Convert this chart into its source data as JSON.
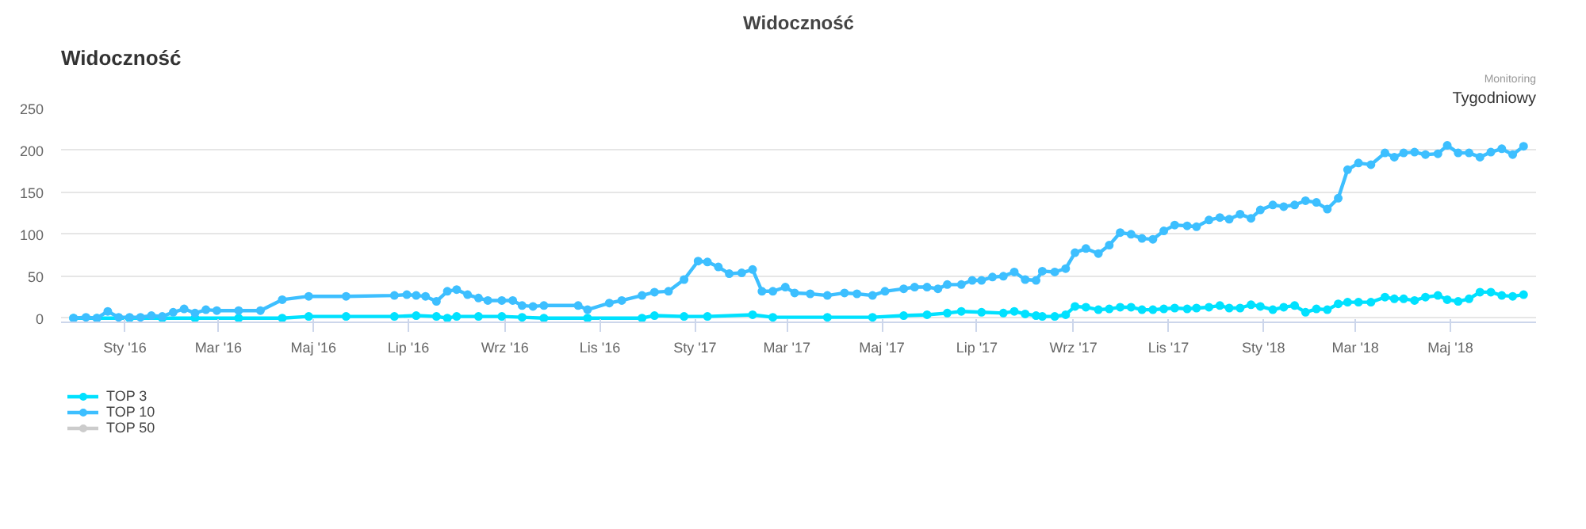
{
  "chart_data": {
    "type": "line",
    "title": "Widoczność",
    "annotations": [
      "Widoczność",
      "Monitoring",
      "Tygodniowy"
    ],
    "xlim": [
      "2015-11-21",
      "2018-06-25"
    ],
    "ylim": [
      -5,
      250
    ],
    "xticks": [
      {
        "value": "2016-01-01",
        "label": "Sty '16"
      },
      {
        "value": "2016-03-01",
        "label": "Mar '16"
      },
      {
        "value": "2016-05-01",
        "label": "Maj '16"
      },
      {
        "value": "2016-07-01",
        "label": "Lip '16"
      },
      {
        "value": "2016-09-01",
        "label": "Wrz '16"
      },
      {
        "value": "2016-11-01",
        "label": "Lis '16"
      },
      {
        "value": "2017-01-01",
        "label": "Sty '17"
      },
      {
        "value": "2017-03-01",
        "label": "Mar '17"
      },
      {
        "value": "2017-05-01",
        "label": "Maj '17"
      },
      {
        "value": "2017-07-01",
        "label": "Lip '17"
      },
      {
        "value": "2017-09-01",
        "label": "Wrz '17"
      },
      {
        "value": "2017-11-01",
        "label": "Lis '17"
      },
      {
        "value": "2018-01-01",
        "label": "Sty '18"
      },
      {
        "value": "2018-03-01",
        "label": "Mar '18"
      },
      {
        "value": "2018-05-01",
        "label": "Maj '18"
      }
    ],
    "yticks": [
      0,
      50,
      100,
      150,
      200,
      250
    ],
    "grid": "y",
    "legend": "bottom left",
    "marker": "circle",
    "line_style": "solid",
    "series": [
      {
        "name": "TOP 3",
        "color": "#00e1ff",
        "x": [
          "2015-11-29",
          "2015-12-14",
          "2016-01-04",
          "2016-01-25",
          "2016-02-15",
          "2016-03-14",
          "2016-04-11",
          "2016-04-28",
          "2016-05-22",
          "2016-06-22",
          "2016-07-06",
          "2016-07-19",
          "2016-07-26",
          "2016-08-01",
          "2016-08-15",
          "2016-08-30",
          "2016-09-12",
          "2016-09-26",
          "2016-10-24",
          "2016-11-28",
          "2016-12-06",
          "2016-12-25",
          "2017-01-09",
          "2017-02-07",
          "2017-02-20",
          "2017-03-27",
          "2017-04-25",
          "2017-05-15",
          "2017-05-30",
          "2017-06-12",
          "2017-06-21",
          "2017-07-04",
          "2017-07-18",
          "2017-07-25",
          "2017-08-01",
          "2017-08-08",
          "2017-08-12",
          "2017-08-20",
          "2017-08-27",
          "2017-09-02",
          "2017-09-09",
          "2017-09-17",
          "2017-09-24",
          "2017-10-01",
          "2017-10-08",
          "2017-10-15",
          "2017-10-22",
          "2017-10-29",
          "2017-11-05",
          "2017-11-13",
          "2017-11-19",
          "2017-11-27",
          "2017-12-04",
          "2017-12-10",
          "2017-12-17",
          "2017-12-24",
          "2017-12-30",
          "2018-01-07",
          "2018-01-14",
          "2018-01-21",
          "2018-01-28",
          "2018-02-04",
          "2018-02-11",
          "2018-02-18",
          "2018-02-24",
          "2018-03-03",
          "2018-03-11",
          "2018-03-20",
          "2018-03-26",
          "2018-04-01",
          "2018-04-08",
          "2018-04-15",
          "2018-04-23",
          "2018-04-29",
          "2018-05-06",
          "2018-05-13",
          "2018-05-20",
          "2018-05-27",
          "2018-06-03",
          "2018-06-10",
          "2018-06-17"
        ],
        "values": [
          0,
          0,
          0,
          0,
          0,
          0,
          0,
          2,
          2,
          2,
          3,
          2,
          0,
          2,
          2,
          2,
          1,
          0,
          0,
          0,
          3,
          2,
          2,
          4,
          1,
          1,
          1,
          3,
          4,
          6,
          8,
          7,
          6,
          8,
          5,
          3,
          2,
          2,
          4,
          14,
          13,
          10,
          11,
          13,
          13,
          10,
          10,
          11,
          12,
          11,
          12,
          13,
          15,
          12,
          12,
          16,
          14,
          10,
          13,
          15,
          7,
          11,
          10,
          17,
          19,
          19,
          19,
          25,
          23,
          23,
          21,
          25,
          27,
          22,
          20,
          23,
          31,
          31,
          27,
          26,
          28
        ]
      },
      {
        "name": "TOP 10",
        "color": "#3dbfff",
        "x": [
          "2015-11-29",
          "2015-12-07",
          "2015-12-14",
          "2015-12-21",
          "2015-12-28",
          "2016-01-04",
          "2016-01-11",
          "2016-01-18",
          "2016-01-25",
          "2016-02-01",
          "2016-02-08",
          "2016-02-15",
          "2016-02-22",
          "2016-02-29",
          "2016-03-14",
          "2016-03-28",
          "2016-04-11",
          "2016-04-28",
          "2016-05-22",
          "2016-06-22",
          "2016-06-30",
          "2016-07-06",
          "2016-07-12",
          "2016-07-19",
          "2016-07-26",
          "2016-08-01",
          "2016-08-08",
          "2016-08-15",
          "2016-08-21",
          "2016-08-30",
          "2016-09-06",
          "2016-09-12",
          "2016-09-19",
          "2016-09-26",
          "2016-10-18",
          "2016-10-24",
          "2016-11-07",
          "2016-11-15",
          "2016-11-28",
          "2016-12-06",
          "2016-12-15",
          "2016-12-25",
          "2017-01-03",
          "2017-01-09",
          "2017-01-16",
          "2017-01-23",
          "2017-01-31",
          "2017-02-07",
          "2017-02-13",
          "2017-02-20",
          "2017-02-28",
          "2017-03-06",
          "2017-03-16",
          "2017-03-27",
          "2017-04-07",
          "2017-04-15",
          "2017-04-25",
          "2017-05-03",
          "2017-05-15",
          "2017-05-22",
          "2017-05-30",
          "2017-06-06",
          "2017-06-12",
          "2017-06-21",
          "2017-06-28",
          "2017-07-04",
          "2017-07-11",
          "2017-07-18",
          "2017-07-25",
          "2017-08-01",
          "2017-08-08",
          "2017-08-12",
          "2017-08-20",
          "2017-08-27",
          "2017-09-02",
          "2017-09-09",
          "2017-09-17",
          "2017-09-24",
          "2017-10-01",
          "2017-10-08",
          "2017-10-15",
          "2017-10-22",
          "2017-10-29",
          "2017-11-05",
          "2017-11-13",
          "2017-11-19",
          "2017-11-27",
          "2017-12-04",
          "2017-12-10",
          "2017-12-17",
          "2017-12-24",
          "2017-12-30",
          "2018-01-07",
          "2018-01-14",
          "2018-01-21",
          "2018-01-28",
          "2018-02-04",
          "2018-02-11",
          "2018-02-18",
          "2018-02-24",
          "2018-03-03",
          "2018-03-11",
          "2018-03-20",
          "2018-03-26",
          "2018-04-01",
          "2018-04-08",
          "2018-04-15",
          "2018-04-23",
          "2018-04-29",
          "2018-05-06",
          "2018-05-13",
          "2018-05-20",
          "2018-05-27",
          "2018-06-03",
          "2018-06-10",
          "2018-06-17"
        ],
        "values": [
          0,
          1,
          0,
          8,
          1,
          1,
          1,
          3,
          2,
          7,
          11,
          6,
          10,
          9,
          9,
          9,
          22,
          26,
          26,
          27,
          28,
          27,
          26,
          20,
          32,
          34,
          28,
          24,
          21,
          21,
          21,
          15,
          14,
          15,
          15,
          10,
          18,
          21,
          27,
          31,
          32,
          46,
          68,
          67,
          61,
          53,
          54,
          58,
          32,
          32,
          37,
          30,
          29,
          27,
          30,
          29,
          27,
          32,
          35,
          37,
          37,
          35,
          40,
          40,
          45,
          45,
          49,
          50,
          55,
          46,
          45,
          56,
          55,
          59,
          78,
          83,
          77,
          87,
          102,
          100,
          95,
          94,
          104,
          111,
          110,
          109,
          117,
          120,
          118,
          124,
          119,
          129,
          135,
          133,
          135,
          140,
          138,
          130,
          143,
          177,
          185,
          183,
          197,
          192,
          197,
          198,
          195,
          196,
          206,
          197,
          197,
          192,
          198,
          202,
          195,
          205
        ]
      },
      {
        "name": "TOP 50",
        "color": "#cccccc"
      }
    ]
  }
}
